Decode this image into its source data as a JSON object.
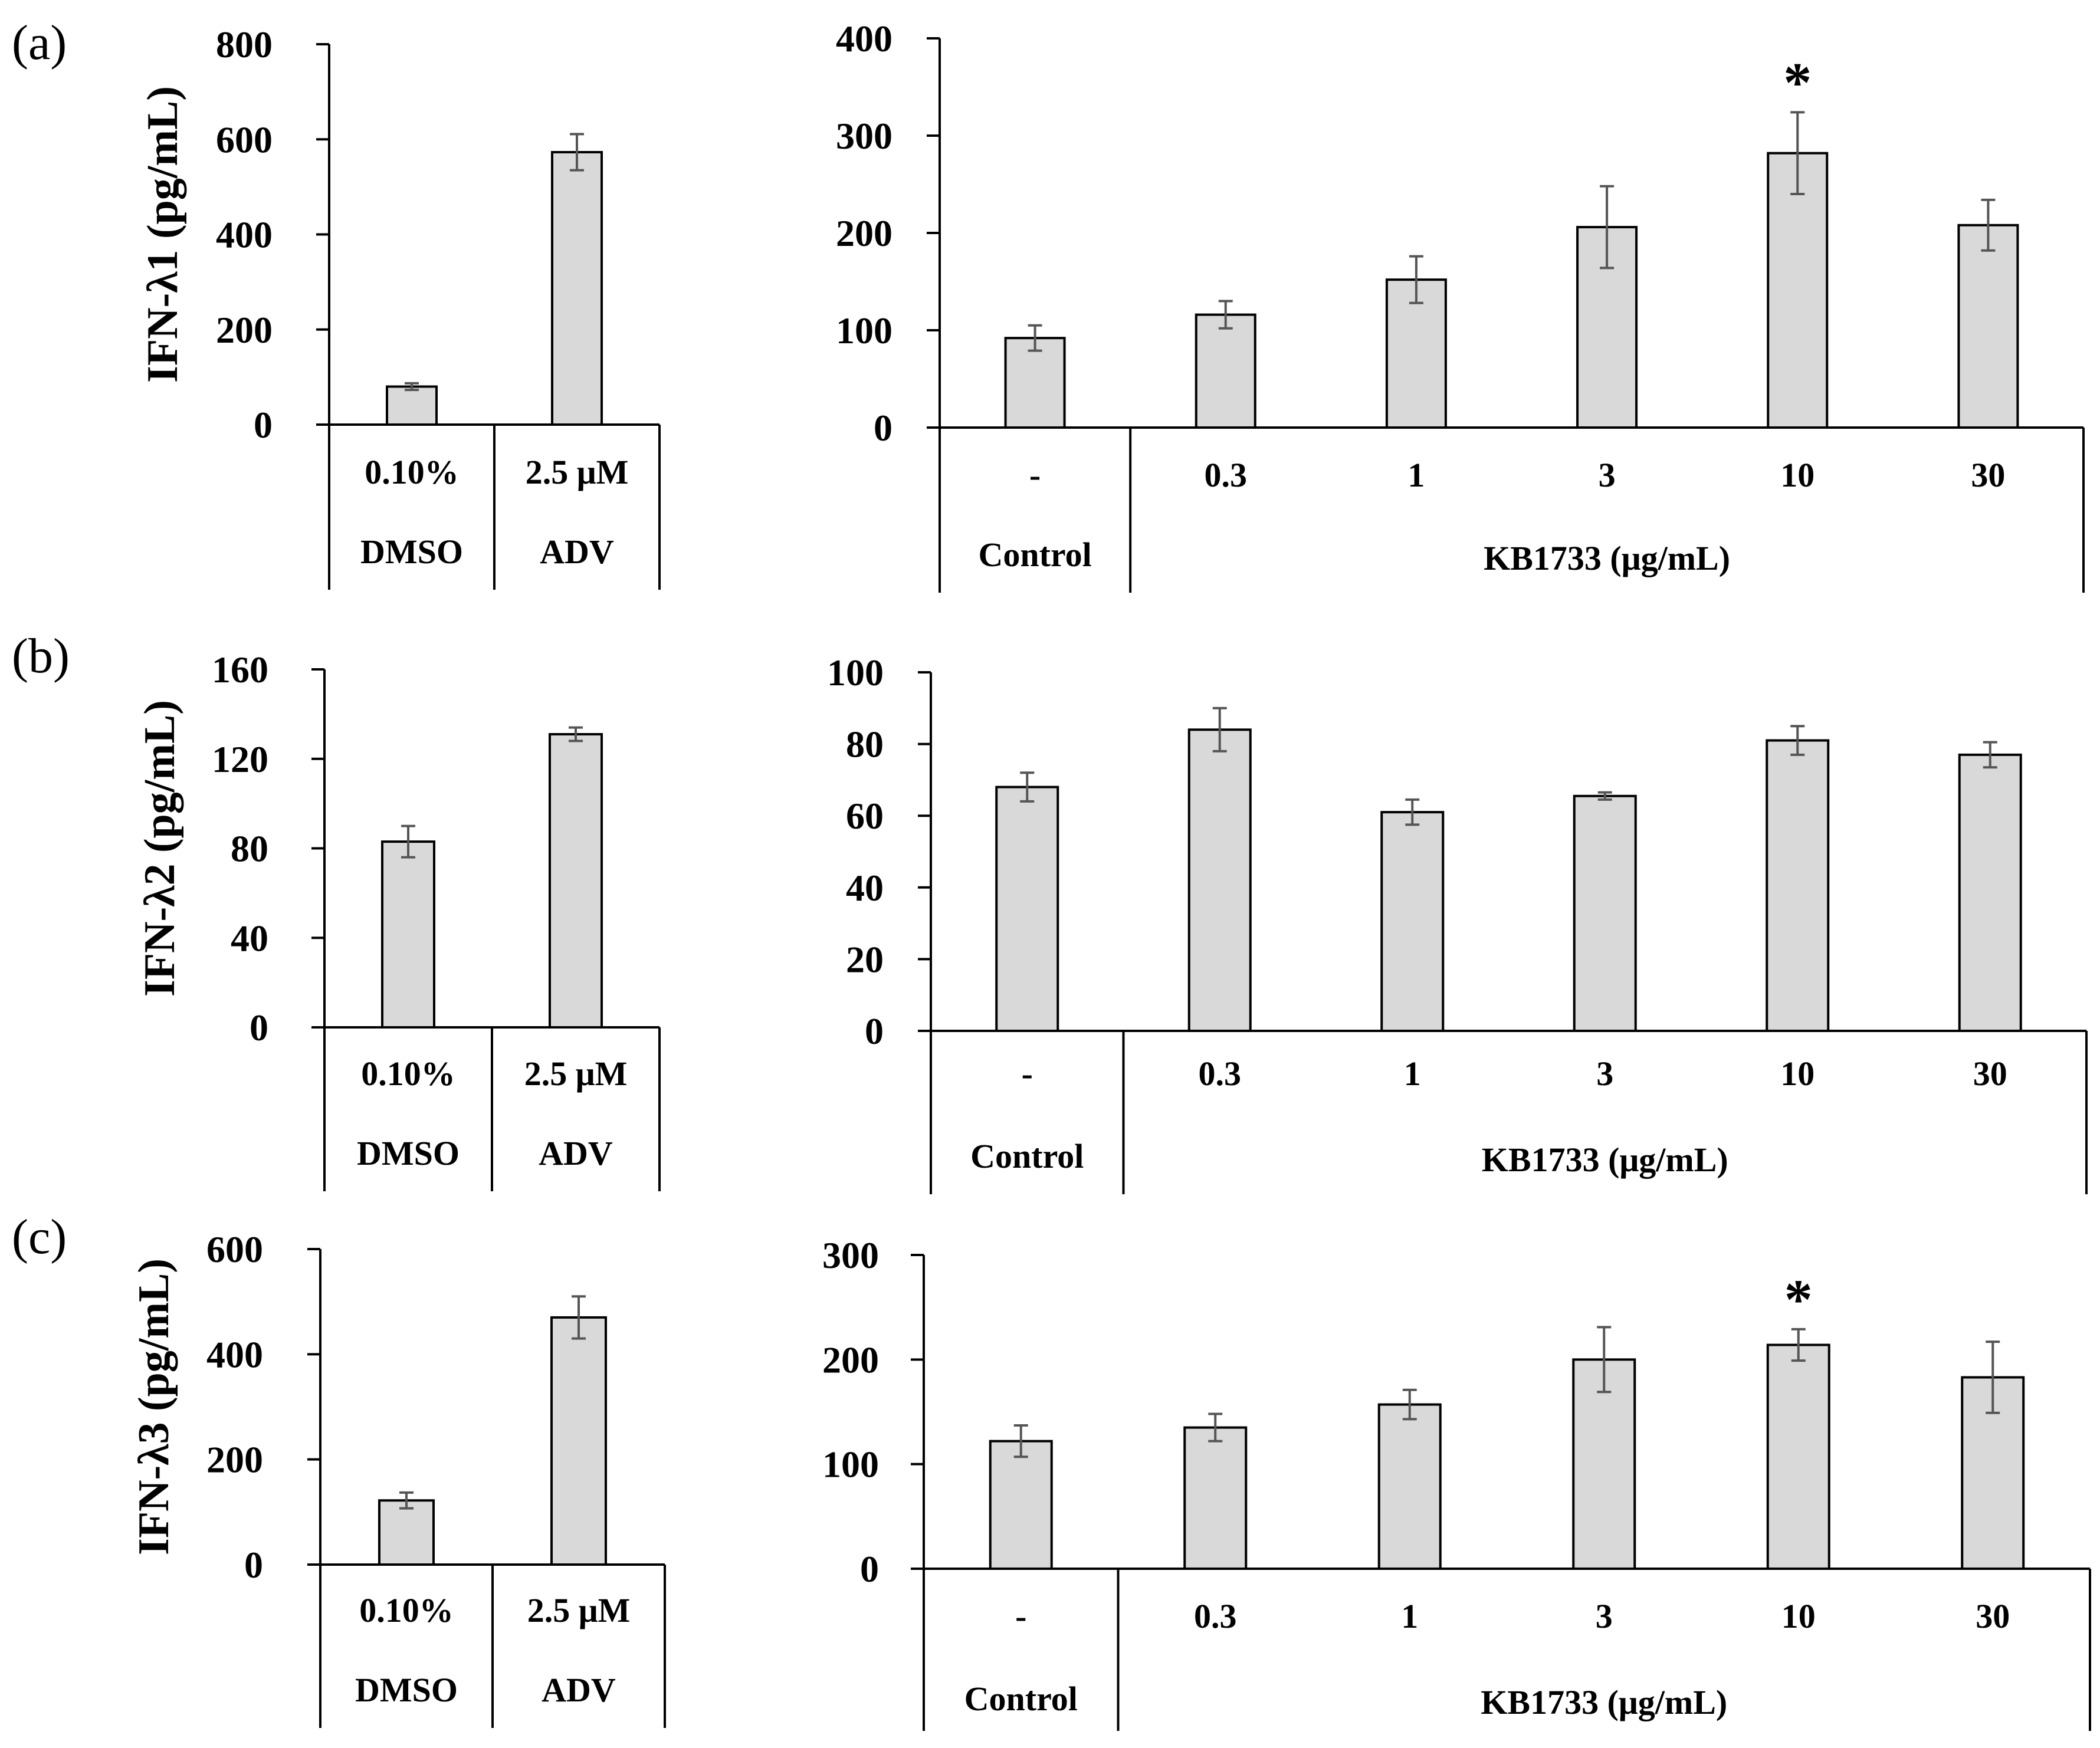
{
  "chart_data": [
    {
      "type": "bar",
      "panel": "(a)",
      "ylabel": "IFN-λ1 (pg/mL)",
      "ylim": [
        0,
        800
      ],
      "yticks": [
        0,
        200,
        400,
        600,
        800
      ],
      "categories": [
        "0.10%",
        "2.5 μM"
      ],
      "groups": [
        "DMSO",
        "ADV"
      ],
      "values": [
        80,
        573
      ],
      "errors": [
        7,
        38
      ]
    },
    {
      "type": "bar",
      "ylim": [
        0,
        400
      ],
      "yticks": [
        0,
        100,
        200,
        300,
        400
      ],
      "categories": [
        "-",
        "0.3",
        "1",
        "3",
        "10",
        "30"
      ],
      "group_control": "Control",
      "group_treatment": "KB1733 (μg/mL)",
      "values": [
        92,
        116,
        152,
        206,
        282,
        208
      ],
      "errors": [
        13,
        14,
        24,
        42,
        42,
        26
      ],
      "significance": [
        "",
        "",
        "",
        "",
        "*",
        ""
      ]
    },
    {
      "type": "bar",
      "panel": "(b)",
      "ylabel": "IFN-λ2 (pg/mL)",
      "ylim": [
        0,
        160
      ],
      "yticks": [
        0,
        40,
        80,
        120,
        160
      ],
      "categories": [
        "0.10%",
        "2.5 μM"
      ],
      "groups": [
        "DMSO",
        "ADV"
      ],
      "values": [
        83,
        131
      ],
      "errors": [
        7,
        3
      ]
    },
    {
      "type": "bar",
      "ylim": [
        0,
        100
      ],
      "yticks": [
        0,
        20,
        40,
        60,
        80,
        100
      ],
      "categories": [
        "-",
        "0.3",
        "1",
        "3",
        "10",
        "30"
      ],
      "group_control": "Control",
      "group_treatment": "KB1733 (μg/mL)",
      "values": [
        68,
        84,
        61,
        65.5,
        81,
        77
      ],
      "errors": [
        4,
        6,
        3.5,
        1,
        4,
        3.5
      ],
      "significance": [
        "",
        "",
        "",
        "",
        "",
        ""
      ]
    },
    {
      "type": "bar",
      "panel": "(c)",
      "ylabel": "IFN-λ3 (pg/mL)",
      "ylim": [
        0,
        600
      ],
      "yticks": [
        0,
        200,
        400,
        600
      ],
      "categories": [
        "0.10%",
        "2.5 μM"
      ],
      "groups": [
        "DMSO",
        "ADV"
      ],
      "values": [
        122,
        470
      ],
      "errors": [
        15,
        40
      ]
    },
    {
      "type": "bar",
      "ylim": [
        0,
        300
      ],
      "yticks": [
        0,
        100,
        200,
        300
      ],
      "categories": [
        "-",
        "0.3",
        "1",
        "3",
        "10",
        "30"
      ],
      "group_control": "Control",
      "group_treatment": "KB1733 (μg/mL)",
      "values": [
        122,
        135,
        157,
        200,
        214,
        183
      ],
      "errors": [
        15,
        13,
        14,
        31,
        15,
        34
      ],
      "significance": [
        "",
        "",
        "",
        "",
        "*",
        ""
      ]
    }
  ]
}
